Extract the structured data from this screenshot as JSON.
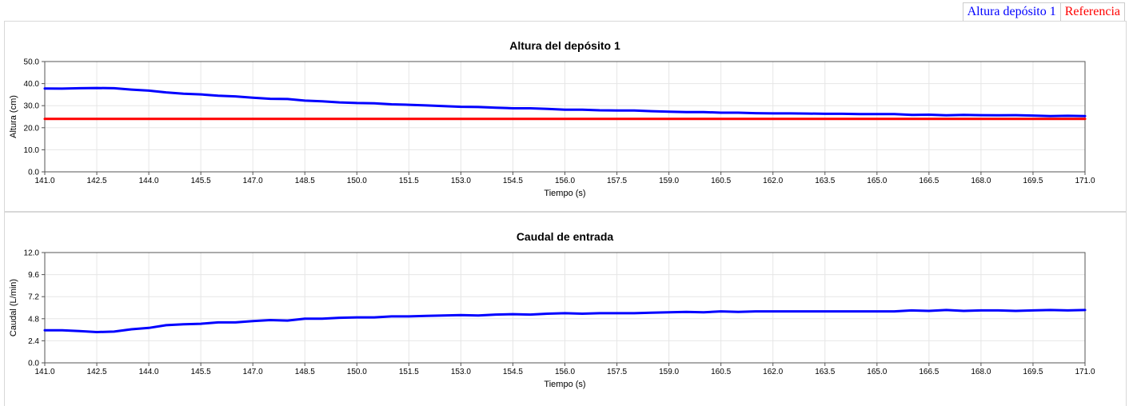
{
  "legend": {
    "items": [
      {
        "label": "Altura depósito 1",
        "color": "#0000ff"
      },
      {
        "label": "Referencia",
        "color": "#ff0000"
      }
    ]
  },
  "chart_data": [
    {
      "type": "line",
      "title": "Altura del depósito 1",
      "xlabel": "Tiempo (s)",
      "ylabel": "Altura (cm)",
      "xlim": [
        141.0,
        171.0
      ],
      "ylim": [
        0.0,
        50.0
      ],
      "xticks": [
        "141.0",
        "142.5",
        "144.0",
        "145.5",
        "147.0",
        "148.5",
        "150.0",
        "151.5",
        "153.0",
        "154.5",
        "156.0",
        "157.5",
        "159.0",
        "160.5",
        "162.0",
        "163.5",
        "165.0",
        "166.5",
        "168.0",
        "169.5",
        "171.0"
      ],
      "yticks": [
        "0.0",
        "10.0",
        "20.0",
        "30.0",
        "40.0",
        "50.0"
      ],
      "grid": true,
      "series": [
        {
          "name": "Altura depósito 1",
          "color": "#0000ff",
          "x": [
            141.0,
            141.5,
            142.0,
            142.5,
            143.0,
            143.5,
            144.0,
            144.5,
            145.0,
            145.5,
            146.0,
            146.5,
            147.0,
            147.5,
            148.0,
            148.5,
            149.0,
            149.5,
            150.0,
            150.5,
            151.0,
            151.5,
            152.0,
            152.5,
            153.0,
            153.5,
            154.0,
            154.5,
            155.0,
            155.5,
            156.0,
            156.5,
            157.0,
            157.5,
            158.0,
            158.5,
            159.0,
            159.5,
            160.0,
            160.5,
            161.0,
            161.5,
            162.0,
            162.5,
            163.0,
            163.5,
            164.0,
            164.5,
            165.0,
            165.5,
            166.0,
            166.5,
            167.0,
            167.5,
            168.0,
            168.5,
            169.0,
            169.5,
            170.0,
            170.5,
            171.0
          ],
          "y": [
            37.8,
            37.7,
            37.9,
            38.0,
            37.9,
            37.3,
            36.8,
            36.0,
            35.4,
            35.1,
            34.5,
            34.2,
            33.6,
            33.1,
            33.0,
            32.3,
            32.0,
            31.5,
            31.2,
            31.1,
            30.6,
            30.4,
            30.1,
            29.8,
            29.5,
            29.4,
            29.1,
            28.8,
            28.8,
            28.5,
            28.2,
            28.2,
            27.9,
            27.8,
            27.8,
            27.5,
            27.3,
            27.1,
            27.1,
            26.8,
            26.8,
            26.6,
            26.5,
            26.5,
            26.4,
            26.3,
            26.3,
            26.2,
            26.2,
            26.2,
            25.8,
            25.9,
            25.6,
            25.8,
            25.7,
            25.6,
            25.7,
            25.5,
            25.3,
            25.4,
            25.3
          ]
        },
        {
          "name": "Referencia",
          "color": "#ff0000",
          "x": [
            141.0,
            171.0
          ],
          "y": [
            24.0,
            24.0
          ]
        }
      ]
    },
    {
      "type": "line",
      "title": "Caudal de entrada",
      "xlabel": "Tiempo (s)",
      "ylabel": "Caudal (L/min)",
      "xlim": [
        141.0,
        171.0
      ],
      "ylim": [
        0.0,
        12.0
      ],
      "xticks": [
        "141.0",
        "142.5",
        "144.0",
        "145.5",
        "147.0",
        "148.5",
        "150.0",
        "151.5",
        "153.0",
        "154.5",
        "156.0",
        "157.5",
        "159.0",
        "160.5",
        "162.0",
        "163.5",
        "165.0",
        "166.5",
        "168.0",
        "169.5",
        "171.0"
      ],
      "yticks": [
        "0.0",
        "2.4",
        "4.8",
        "7.2",
        "9.6",
        "12.0"
      ],
      "grid": true,
      "series": [
        {
          "color": "#0000ff",
          "x": [
            141.0,
            141.5,
            142.0,
            142.5,
            143.0,
            143.5,
            144.0,
            144.5,
            145.0,
            145.5,
            146.0,
            146.5,
            147.0,
            147.5,
            148.0,
            148.5,
            149.0,
            149.5,
            150.0,
            150.5,
            151.0,
            151.5,
            152.0,
            152.5,
            153.0,
            153.5,
            154.0,
            154.5,
            155.0,
            155.5,
            156.0,
            156.5,
            157.0,
            157.5,
            158.0,
            158.5,
            159.0,
            159.5,
            160.0,
            160.5,
            161.0,
            161.5,
            162.0,
            162.5,
            163.0,
            163.5,
            164.0,
            164.5,
            165.0,
            165.5,
            166.0,
            166.5,
            167.0,
            167.5,
            168.0,
            168.5,
            169.0,
            169.5,
            170.0,
            170.5,
            171.0
          ],
          "y": [
            3.55,
            3.55,
            3.45,
            3.35,
            3.4,
            3.65,
            3.8,
            4.1,
            4.2,
            4.25,
            4.4,
            4.4,
            4.55,
            4.65,
            4.6,
            4.8,
            4.8,
            4.9,
            4.95,
            4.95,
            5.05,
            5.05,
            5.1,
            5.15,
            5.2,
            5.15,
            5.25,
            5.3,
            5.25,
            5.35,
            5.4,
            5.35,
            5.4,
            5.4,
            5.4,
            5.45,
            5.5,
            5.55,
            5.5,
            5.6,
            5.55,
            5.6,
            5.6,
            5.6,
            5.6,
            5.6,
            5.6,
            5.6,
            5.6,
            5.6,
            5.7,
            5.65,
            5.75,
            5.65,
            5.7,
            5.7,
            5.65,
            5.7,
            5.75,
            5.7,
            5.75
          ]
        }
      ]
    }
  ]
}
